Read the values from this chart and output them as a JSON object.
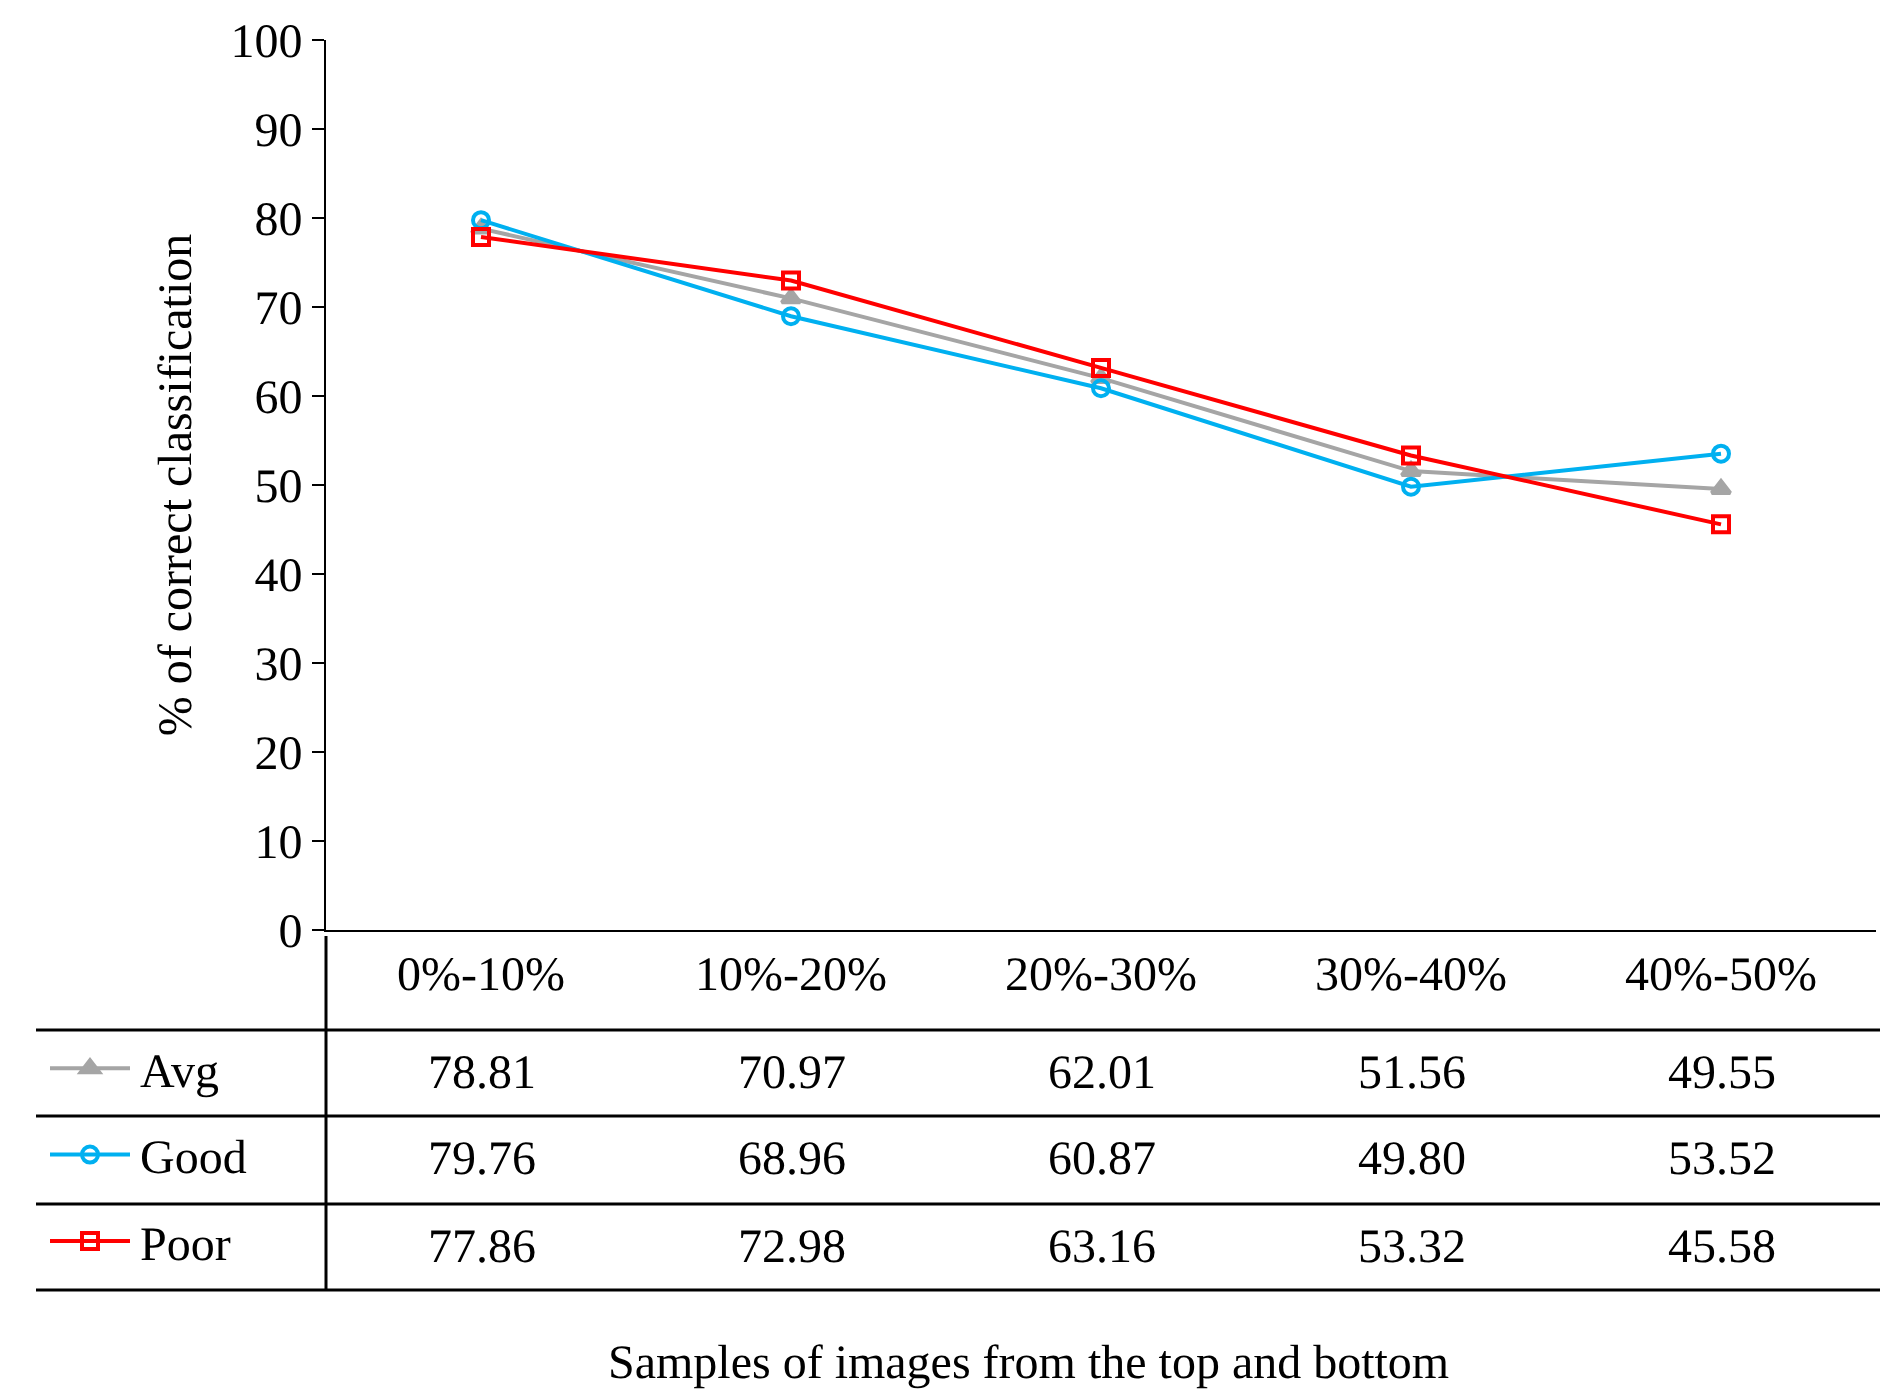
{
  "chart_data": {
    "type": "line",
    "ylabel": "% of correct classification",
    "annotations": [
      "Samples of images from the top and bottom"
    ],
    "categories": [
      "0%-10%",
      "10%-20%",
      "20%-30%",
      "30%-40%",
      "40%-50%"
    ],
    "series": [
      {
        "name": "Avg",
        "color": "#a5a5a5",
        "marker": "triangle",
        "values": [
          78.81,
          70.97,
          62.01,
          51.56,
          49.55
        ],
        "value_labels": [
          "78.81",
          "70.97",
          "62.01",
          "51.56",
          "49.55"
        ]
      },
      {
        "name": "Good",
        "color": "#00b0f0",
        "marker": "circle",
        "values": [
          79.76,
          68.96,
          60.87,
          49.8,
          53.52
        ],
        "value_labels": [
          "79.76",
          "68.96",
          "60.87",
          "49.80",
          "53.52"
        ]
      },
      {
        "name": "Poor",
        "color": "#ff0000",
        "marker": "square",
        "values": [
          77.86,
          72.98,
          63.16,
          53.32,
          45.58
        ],
        "value_labels": [
          "77.86",
          "72.98",
          "63.16",
          "53.32",
          "45.58"
        ]
      }
    ],
    "ylim": [
      0,
      100
    ],
    "yticks": [
      0,
      10,
      20,
      30,
      40,
      50,
      60,
      70,
      80,
      90,
      100
    ],
    "legend": "bottom left",
    "line_style": "solid"
  }
}
